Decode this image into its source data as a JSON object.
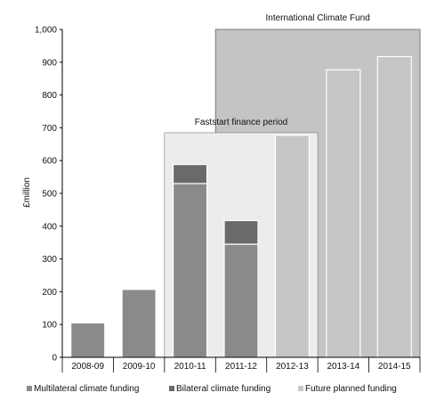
{
  "chart_data": {
    "type": "bar",
    "title": "",
    "xlabel": "",
    "ylabel": "£million",
    "ylim": [
      0,
      1000
    ],
    "y_ticks": [
      "0",
      "100",
      "200",
      "300",
      "400",
      "500",
      "600",
      "700",
      "800",
      "900",
      "1,000"
    ],
    "categories": [
      "2008-09",
      "2009-10",
      "2010-11",
      "2011-12",
      "2012-13",
      "2013-14",
      "2014-15"
    ],
    "stacked": true,
    "series": [
      {
        "name": "Multilateral climate funding",
        "color": "#8a8a8a",
        "values": [
          105,
          207,
          530,
          345,
          null,
          null,
          null
        ]
      },
      {
        "name": "Bilateral climate funding",
        "color": "#6a6a6a",
        "values": [
          null,
          null,
          58,
          72,
          null,
          null,
          null
        ]
      },
      {
        "name": "Future planned funding",
        "color": "#c6c6c6",
        "values": [
          null,
          null,
          null,
          null,
          677,
          877,
          917
        ]
      }
    ],
    "periods": [
      {
        "label": "International Climate Fund",
        "start_category": "2011-12",
        "end_category": "2014-15",
        "top_value": 1000,
        "fill": "#c4c4c4"
      },
      {
        "label": "Faststart finance period",
        "start_category": "2010-11",
        "end_category": "2012-13",
        "top_value": 685,
        "fill": "#ececec"
      }
    ],
    "grid": false,
    "legend_position": "bottom"
  }
}
